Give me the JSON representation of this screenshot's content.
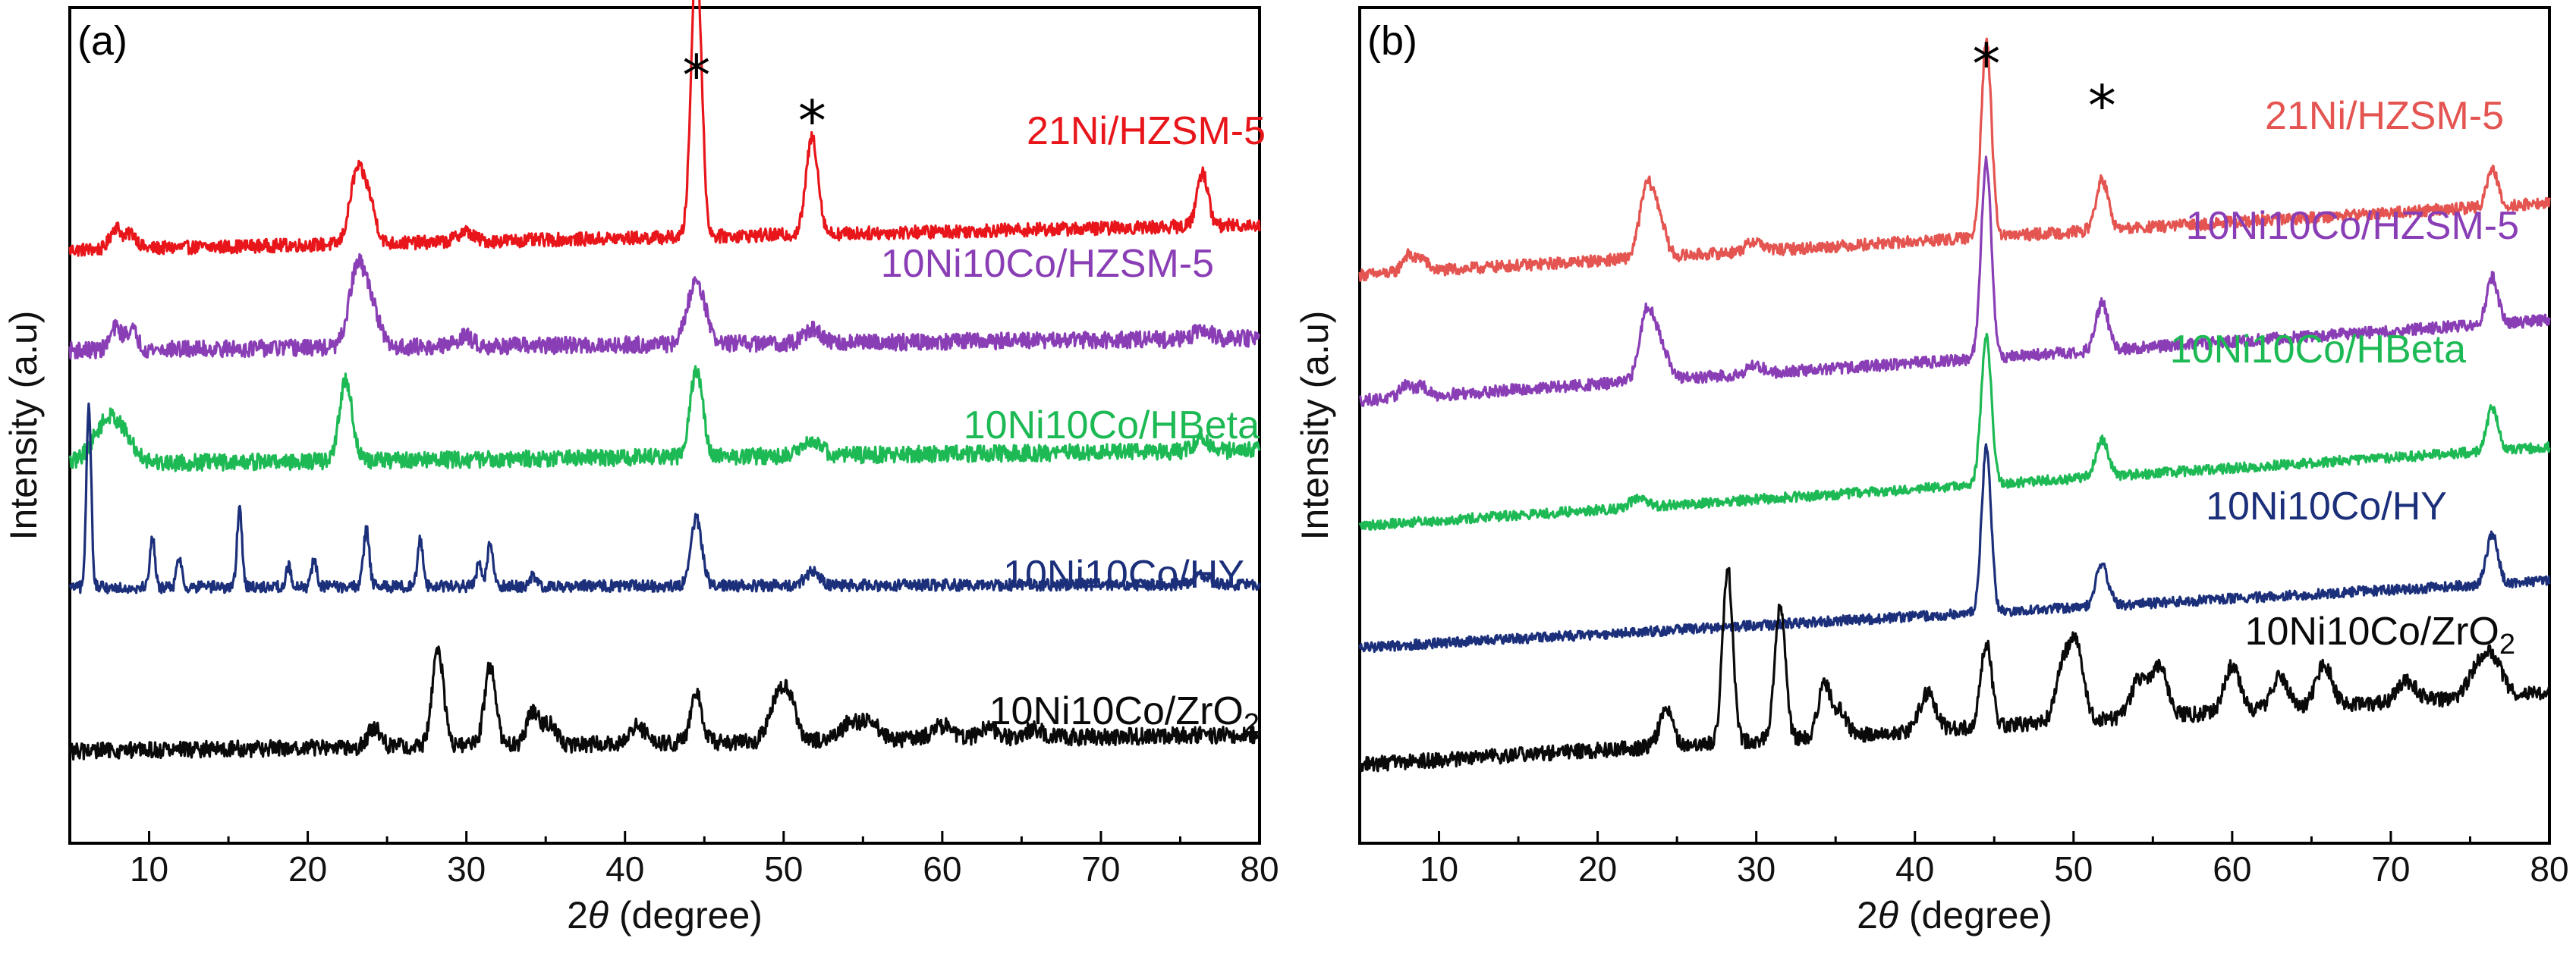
{
  "chart_data": [
    {
      "type": "line",
      "panel_label": "(a)",
      "title": "",
      "xlabel_prefix": "2",
      "xlabel_symbol": "θ",
      "xlabel_suffix": " (degree)",
      "ylabel": "Intensity (a.u)",
      "xlim": [
        5,
        80
      ],
      "xticks": [
        "10",
        "20",
        "30",
        "40",
        "50",
        "60",
        "70",
        "80"
      ],
      "yticks": "none (arbitrary units, curves offset vertically)",
      "reflection_markers": [
        {
          "symbol": "*",
          "two_theta": 44.5
        },
        {
          "symbol": "*",
          "two_theta": 51.8
        }
      ],
      "series": [
        {
          "name": "21Ni/HZSM-5",
          "label_main": "21Ni/HZSM-5",
          "label_sub": "",
          "label_tail": "",
          "color": "#e8161b",
          "baseline_start": 1.2,
          "baseline_end": 1.35,
          "noise": 0.04,
          "peaks": [
            [
              7.9,
              0.13,
              0.35
            ],
            [
              8.9,
              0.09,
              0.35
            ],
            [
              23.1,
              0.42,
              0.45
            ],
            [
              23.9,
              0.22,
              0.4
            ],
            [
              29.9,
              0.06,
              0.5
            ],
            [
              44.5,
              1.72,
              0.32
            ],
            [
              51.8,
              0.58,
              0.38
            ],
            [
              76.4,
              0.32,
              0.35
            ]
          ]
        },
        {
          "name": "10Ni10Co/HZSM-5",
          "label_main": "10Ni10Co/HZSM-5",
          "label_sub": "",
          "label_tail": "",
          "color": "#8a3eb5",
          "baseline_start": 0.6,
          "baseline_end": 0.67,
          "noise": 0.05,
          "peaks": [
            [
              7.9,
              0.13,
              0.35
            ],
            [
              8.9,
              0.12,
              0.35
            ],
            [
              23.1,
              0.45,
              0.5
            ],
            [
              24.0,
              0.24,
              0.5
            ],
            [
              29.9,
              0.06,
              0.5
            ],
            [
              44.5,
              0.38,
              0.55
            ],
            [
              51.8,
              0.08,
              0.5
            ],
            [
              76.4,
              0.06,
              0.5
            ]
          ]
        },
        {
          "name": "10Ni10Co/HBeta",
          "label_main": "10Ni10Co/HBeta",
          "label_sub": "",
          "label_tail": "",
          "color": "#1db954",
          "baseline_start": -0.08,
          "baseline_end": 0.0,
          "noise": 0.05,
          "peaks": [
            [
              7.6,
              0.28,
              1.0
            ],
            [
              22.4,
              0.48,
              0.4
            ],
            [
              44.5,
              0.52,
              0.4
            ],
            [
              51.8,
              0.1,
              0.55
            ],
            [
              76.4,
              0.06,
              0.5
            ]
          ]
        },
        {
          "name": "10Ni10Co/HY",
          "label_main": "10Ni10Co/HY",
          "label_sub": "",
          "label_tail": "",
          "color": "#1b2f7a",
          "baseline_start": -0.82,
          "baseline_end": -0.8,
          "noise": 0.035,
          "peaks": [
            [
              6.2,
              1.1,
              0.15
            ],
            [
              10.2,
              0.3,
              0.16
            ],
            [
              11.9,
              0.18,
              0.16
            ],
            [
              15.7,
              0.46,
              0.16
            ],
            [
              18.8,
              0.12,
              0.16
            ],
            [
              20.4,
              0.17,
              0.16
            ],
            [
              23.7,
              0.34,
              0.18
            ],
            [
              27.1,
              0.28,
              0.18
            ],
            [
              30.8,
              0.12,
              0.2
            ],
            [
              31.5,
              0.25,
              0.18
            ],
            [
              34.2,
              0.06,
              0.2
            ],
            [
              44.5,
              0.4,
              0.35
            ],
            [
              51.8,
              0.08,
              0.45
            ],
            [
              76.4,
              0.05,
              0.45
            ]
          ]
        },
        {
          "name": "10Ni10Co/ZrO2",
          "label_main": "10Ni10Co/ZrO",
          "label_sub": "2",
          "label_tail": "",
          "color": "#0a0a0a",
          "baseline_start": -1.8,
          "baseline_end": -1.7,
          "noise": 0.05,
          "peaks": [
            [
              24.2,
              0.12,
              0.4
            ],
            [
              28.2,
              0.6,
              0.35
            ],
            [
              31.5,
              0.48,
              0.35
            ],
            [
              34.2,
              0.2,
              0.4
            ],
            [
              35.3,
              0.12,
              0.4
            ],
            [
              40.8,
              0.1,
              0.5
            ],
            [
              44.5,
              0.3,
              0.35
            ],
            [
              49.5,
              0.2,
              0.5
            ],
            [
              50.3,
              0.26,
              0.5
            ],
            [
              54.2,
              0.1,
              0.6
            ],
            [
              55.5,
              0.1,
              0.6
            ],
            [
              60.0,
              0.08,
              0.6
            ],
            [
              62.9,
              0.06,
              0.6
            ],
            [
              65.8,
              0.05,
              0.6
            ]
          ]
        }
      ]
    },
    {
      "type": "line",
      "panel_label": "(b)",
      "title": "",
      "xlabel_prefix": "2",
      "xlabel_symbol": "θ",
      "xlabel_suffix": " (degree)",
      "ylabel": "Intensity (a.u)",
      "xlim": [
        5,
        80
      ],
      "xticks": [
        "10",
        "20",
        "30",
        "40",
        "50",
        "60",
        "70",
        "80"
      ],
      "yticks": "none (arbitrary units, curves offset vertically)",
      "reflection_markers": [
        {
          "symbol": "*",
          "two_theta": 44.5
        },
        {
          "symbol": "*",
          "two_theta": 51.8
        }
      ],
      "series": [
        {
          "name": "21Ni/HZSM-5",
          "label_main": "21Ni/HZSM-5",
          "label_sub": "",
          "label_tail": "",
          "color": "#e45450",
          "baseline_start": 1.05,
          "baseline_end": 1.48,
          "noise": 0.035,
          "peaks": [
            [
              8.0,
              0.1,
              0.35
            ],
            [
              8.9,
              0.08,
              0.35
            ],
            [
              23.1,
              0.42,
              0.45
            ],
            [
              23.9,
              0.2,
              0.4
            ],
            [
              29.9,
              0.06,
              0.5
            ],
            [
              44.5,
              1.18,
              0.32
            ],
            [
              51.8,
              0.3,
              0.38
            ],
            [
              76.4,
              0.22,
              0.35
            ]
          ]
        },
        {
          "name": "10Ni10Co/HZSM-5",
          "label_main": "10Ni10Co/HZSM-5",
          "label_sub": "",
          "label_tail": "",
          "color": "#8a3eb5",
          "baseline_start": 0.3,
          "baseline_end": 0.78,
          "noise": 0.035,
          "peaks": [
            [
              7.9,
              0.08,
              0.35
            ],
            [
              8.9,
              0.06,
              0.35
            ],
            [
              23.1,
              0.42,
              0.45
            ],
            [
              24.0,
              0.2,
              0.45
            ],
            [
              29.9,
              0.05,
              0.5
            ],
            [
              44.5,
              1.18,
              0.32
            ],
            [
              51.8,
              0.28,
              0.38
            ],
            [
              76.4,
              0.28,
              0.35
            ]
          ]
        },
        {
          "name": "10Ni10Co/HBeta",
          "label_main": "10Ni10Co/HBeta",
          "label_sub": "",
          "label_tail": "",
          "color": "#1db954",
          "baseline_start": -0.45,
          "baseline_end": 0.02,
          "noise": 0.03,
          "peaks": [
            [
              22.5,
              0.05,
              0.5
            ],
            [
              44.5,
              0.88,
              0.32
            ],
            [
              51.8,
              0.22,
              0.38
            ],
            [
              76.4,
              0.26,
              0.35
            ]
          ]
        },
        {
          "name": "10Ni10Co/HY",
          "label_main": "10Ni10Co/HY",
          "label_sub": "",
          "label_tail": "",
          "color": "#1b2f7a",
          "baseline_start": -1.18,
          "baseline_end": -0.78,
          "noise": 0.03,
          "peaks": [
            [
              44.5,
              0.98,
              0.3
            ],
            [
              51.8,
              0.25,
              0.38
            ],
            [
              76.4,
              0.3,
              0.35
            ]
          ]
        },
        {
          "name": "10Ni10Co/ZrO2",
          "label_main": "10Ni10Co/ZrO",
          "label_sub": "2",
          "label_tail": "",
          "color": "#0a0a0a",
          "baseline_start": -1.88,
          "baseline_end": -1.45,
          "noise": 0.045,
          "peaks": [
            [
              24.3,
              0.22,
              0.4
            ],
            [
              28.2,
              1.05,
              0.32
            ],
            [
              31.5,
              0.8,
              0.33
            ],
            [
              34.3,
              0.32,
              0.38
            ],
            [
              35.3,
              0.15,
              0.4
            ],
            [
              40.8,
              0.22,
              0.5
            ],
            [
              44.5,
              0.5,
              0.35
            ],
            [
              49.3,
              0.32,
              0.45
            ],
            [
              50.2,
              0.45,
              0.45
            ],
            [
              54.1,
              0.22,
              0.5
            ],
            [
              55.4,
              0.3,
              0.5
            ],
            [
              60.0,
              0.28,
              0.5
            ],
            [
              63.0,
              0.2,
              0.5
            ],
            [
              65.8,
              0.25,
              0.5
            ],
            [
              71.0,
              0.12,
              0.6
            ],
            [
              75.5,
              0.18,
              0.6
            ],
            [
              76.5,
              0.2,
              0.55
            ]
          ]
        }
      ]
    }
  ]
}
